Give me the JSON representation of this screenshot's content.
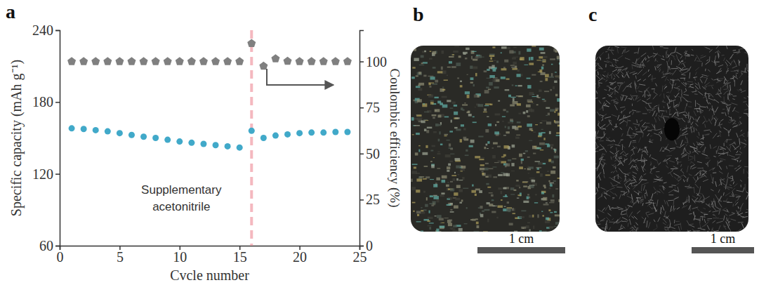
{
  "chart_data": {
    "type": "scatter",
    "panel_label": "a",
    "x_label": "Cvcle number",
    "y_label": "Specific capacity (mAh g⁻¹)",
    "y2_label": "Coulombic efficiency (%)",
    "x": [
      1,
      2,
      3,
      4,
      5,
      6,
      7,
      8,
      9,
      10,
      11,
      12,
      13,
      14,
      15,
      16,
      17,
      18,
      19,
      20,
      21,
      22,
      23,
      24
    ],
    "series": [
      {
        "color": "#41a9c9",
        "marker": "circle",
        "values": [
          158,
          157.5,
          156.5,
          155.5,
          154,
          152.5,
          151,
          150,
          148.5,
          147,
          146,
          145,
          144,
          143,
          142,
          156,
          150,
          152,
          153,
          154,
          154.5,
          154.5,
          155,
          155
        ]
      },
      {
        "color": "#808080",
        "marker": "pentagon",
        "axis": "y2",
        "values": [
          100,
          100,
          100,
          100,
          100,
          100,
          100,
          100,
          100,
          100,
          100,
          100,
          100,
          100,
          100,
          109.8,
          97.5,
          101.5,
          100.2,
          100,
          100,
          100,
          100,
          100
        ]
      }
    ],
    "xlim": [
      0,
      25
    ],
    "xticks": [
      0,
      5,
      10,
      15,
      20,
      25
    ],
    "ylim": [
      60,
      240
    ],
    "yticks": [
      60,
      120,
      180,
      240
    ],
    "y2lim": [
      0,
      117
    ],
    "y2ticks": [
      0,
      25,
      50,
      75,
      100
    ],
    "grid": false,
    "annotations": [
      {
        "text": "Supplementary acetonitrile",
        "x": 16,
        "color": "#f4b8bf",
        "line_style": "dashed"
      }
    ]
  },
  "photos": [
    {
      "panel_label": "b",
      "scale_bar": "1 cm"
    },
    {
      "panel_label": "c",
      "scale_bar": "1 cm"
    }
  ]
}
